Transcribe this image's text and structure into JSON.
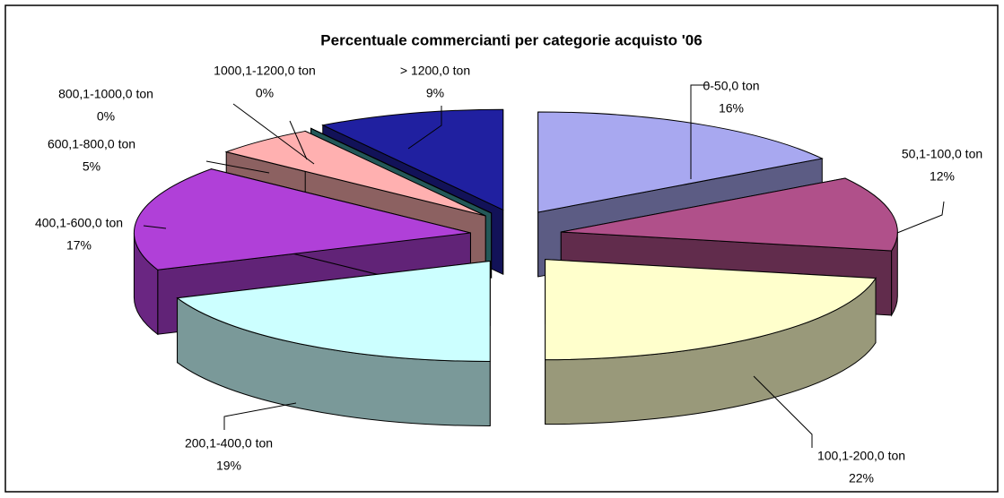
{
  "chart_data": {
    "type": "pie",
    "title": "Percentuale commercianti per categorie acquisto '06",
    "categories": [
      "0-50,0 ton",
      "50,1-100,0 ton",
      "100,1-200,0 ton",
      "200,1-400,0 ton",
      "400,1-600,0 ton",
      "600,1-800,0 ton",
      "800,1-1000,0 ton",
      "1000,1-1200,0 ton",
      "> 1200,0 ton"
    ],
    "values": [
      16,
      12,
      22,
      19,
      17,
      5,
      0,
      0,
      9
    ],
    "value_labels": [
      "16%",
      "12%",
      "22%",
      "19%",
      "17%",
      "5%",
      "0%",
      "0%",
      "9%"
    ],
    "colors": [
      "#a8a8f0",
      "#b0508a",
      "#ffffcc",
      "#ccffff",
      "#b040d8",
      "#ffb0b0",
      "#308080",
      "#40a0a0",
      "#2020a0"
    ]
  }
}
